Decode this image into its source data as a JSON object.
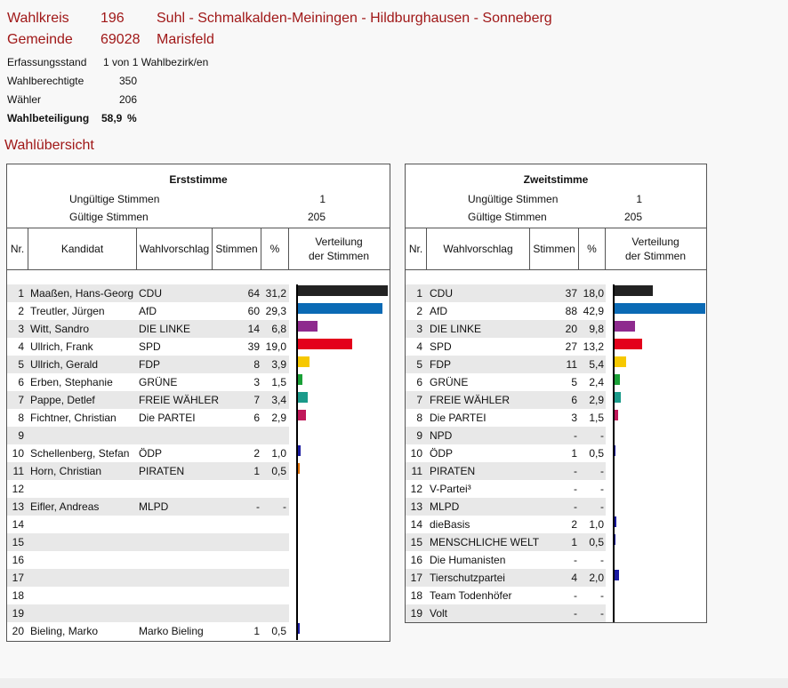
{
  "header": {
    "wahlkreis_label": "Wahlkreis",
    "wahlkreis_nr": "196",
    "wahlkreis_name": "Suhl - Schmalkalden-Meiningen - Hildburghausen - Sonneberg",
    "gemeinde_label": "Gemeinde",
    "gemeinde_nr": "69028",
    "gemeinde_name": "Marisfeld"
  },
  "info": {
    "erfassung_label": "Erfassungsstand",
    "erfassung_value": "1 von 1 Wahlbezirk/en",
    "berechtigte_label": "Wahlberechtigte",
    "berechtigte_value": "350",
    "waehler_label": "Wähler",
    "waehler_value": "206",
    "beteiligung_label": "Wahlbeteiligung",
    "beteiligung_value": "58,9",
    "beteiligung_unit": "%"
  },
  "section_title": "Wahlübersicht",
  "erststimme": {
    "title": "Erststimme",
    "ungueltig_label": "Ungültige Stimmen",
    "ungueltig_value": "1",
    "gueltig_label": "Gültige Stimmen",
    "gueltig_value": "205",
    "col_nr": "Nr.",
    "col_kandidat": "Kandidat",
    "col_wahlvorschlag": "Wahlvorschlag",
    "col_stimmen": "Stimmen",
    "col_pct": "%",
    "col_verteilung_1": "Verteilung",
    "col_verteilung_2": "der Stimmen",
    "rows": [
      {
        "nr": "1",
        "kandidat": "Maaßen, Hans-Georg",
        "partei": "CDU",
        "stimmen": "64",
        "pct": "31,2",
        "share": 31.2,
        "color": "#222222"
      },
      {
        "nr": "2",
        "kandidat": "Treutler, Jürgen",
        "partei": "AfD",
        "stimmen": "60",
        "pct": "29,3",
        "share": 29.3,
        "color": "#0a6ab5"
      },
      {
        "nr": "3",
        "kandidat": "Witt, Sandro",
        "partei": "DIE LINKE",
        "stimmen": "14",
        "pct": "6,8",
        "share": 6.8,
        "color": "#8e2a8e"
      },
      {
        "nr": "4",
        "kandidat": "Ullrich, Frank",
        "partei": "SPD",
        "stimmen": "39",
        "pct": "19,0",
        "share": 19.0,
        "color": "#e3001b"
      },
      {
        "nr": "5",
        "kandidat": "Ullrich, Gerald",
        "partei": "FDP",
        "stimmen": "8",
        "pct": "3,9",
        "share": 3.9,
        "color": "#f6c800"
      },
      {
        "nr": "6",
        "kandidat": "Erben, Stephanie",
        "partei": "GRÜNE",
        "stimmen": "3",
        "pct": "1,5",
        "share": 1.5,
        "color": "#1aa037"
      },
      {
        "nr": "7",
        "kandidat": "Pappe, Detlef",
        "partei": "FREIE WÄHLER",
        "stimmen": "7",
        "pct": "3,4",
        "share": 3.4,
        "color": "#1a9a8a"
      },
      {
        "nr": "8",
        "kandidat": "Fichtner, Christian",
        "partei": "Die PARTEI",
        "stimmen": "6",
        "pct": "2,9",
        "share": 2.9,
        "color": "#c0185a"
      },
      {
        "nr": "9",
        "kandidat": "",
        "partei": "",
        "stimmen": "",
        "pct": "",
        "share": 0,
        "color": ""
      },
      {
        "nr": "10",
        "kandidat": "Schellenberg, Stefan",
        "partei": "ÖDP",
        "stimmen": "2",
        "pct": "1,0",
        "share": 1.0,
        "color": "#1a1aa0"
      },
      {
        "nr": "11",
        "kandidat": "Horn, Christian",
        "partei": "PIRATEN",
        "stimmen": "1",
        "pct": "0,5",
        "share": 0.5,
        "color": "#e07000"
      },
      {
        "nr": "12",
        "kandidat": "",
        "partei": "",
        "stimmen": "",
        "pct": "",
        "share": 0,
        "color": ""
      },
      {
        "nr": "13",
        "kandidat": "Eifler, Andreas",
        "partei": "MLPD",
        "stimmen": "-",
        "pct": "-",
        "share": 0,
        "color": ""
      },
      {
        "nr": "14",
        "kandidat": "",
        "partei": "",
        "stimmen": "",
        "pct": "",
        "share": 0,
        "color": ""
      },
      {
        "nr": "15",
        "kandidat": "",
        "partei": "",
        "stimmen": "",
        "pct": "",
        "share": 0,
        "color": ""
      },
      {
        "nr": "16",
        "kandidat": "",
        "partei": "",
        "stimmen": "",
        "pct": "",
        "share": 0,
        "color": ""
      },
      {
        "nr": "17",
        "kandidat": "",
        "partei": "",
        "stimmen": "",
        "pct": "",
        "share": 0,
        "color": ""
      },
      {
        "nr": "18",
        "kandidat": "",
        "partei": "",
        "stimmen": "",
        "pct": "",
        "share": 0,
        "color": ""
      },
      {
        "nr": "19",
        "kandidat": "",
        "partei": "",
        "stimmen": "",
        "pct": "",
        "share": 0,
        "color": ""
      },
      {
        "nr": "20",
        "kandidat": "Bieling, Marko",
        "partei": "Marko Bieling",
        "stimmen": "1",
        "pct": "0,5",
        "share": 0.5,
        "color": "#1a1aa0"
      }
    ]
  },
  "zweitstimme": {
    "title": "Zweitstimme",
    "ungueltig_label": "Ungültige Stimmen",
    "ungueltig_value": "1",
    "gueltig_label": "Gültige Stimmen",
    "gueltig_value": "205",
    "col_nr": "Nr.",
    "col_wahlvorschlag": "Wahlvorschlag",
    "col_stimmen": "Stimmen",
    "col_pct": "%",
    "col_verteilung_1": "Verteilung",
    "col_verteilung_2": "der Stimmen",
    "rows": [
      {
        "nr": "1",
        "partei": "CDU",
        "stimmen": "37",
        "pct": "18,0",
        "share": 18.0,
        "color": "#222222"
      },
      {
        "nr": "2",
        "partei": "AfD",
        "stimmen": "88",
        "pct": "42,9",
        "share": 42.9,
        "color": "#0a6ab5"
      },
      {
        "nr": "3",
        "partei": "DIE LINKE",
        "stimmen": "20",
        "pct": "9,8",
        "share": 9.8,
        "color": "#8e2a8e"
      },
      {
        "nr": "4",
        "partei": "SPD",
        "stimmen": "27",
        "pct": "13,2",
        "share": 13.2,
        "color": "#e3001b"
      },
      {
        "nr": "5",
        "partei": "FDP",
        "stimmen": "11",
        "pct": "5,4",
        "share": 5.4,
        "color": "#f6c800"
      },
      {
        "nr": "6",
        "partei": "GRÜNE",
        "stimmen": "5",
        "pct": "2,4",
        "share": 2.4,
        "color": "#1aa037"
      },
      {
        "nr": "7",
        "partei": "FREIE WÄHLER",
        "stimmen": "6",
        "pct": "2,9",
        "share": 2.9,
        "color": "#1a9a8a"
      },
      {
        "nr": "8",
        "partei": "Die PARTEI",
        "stimmen": "3",
        "pct": "1,5",
        "share": 1.5,
        "color": "#c0185a"
      },
      {
        "nr": "9",
        "partei": "NPD",
        "stimmen": "-",
        "pct": "-",
        "share": 0,
        "color": ""
      },
      {
        "nr": "10",
        "partei": "ÖDP",
        "stimmen": "1",
        "pct": "0,5",
        "share": 0.5,
        "color": "#1a1aa0"
      },
      {
        "nr": "11",
        "partei": "PIRATEN",
        "stimmen": "-",
        "pct": "-",
        "share": 0,
        "color": ""
      },
      {
        "nr": "12",
        "partei": "V-Partei³",
        "stimmen": "-",
        "pct": "-",
        "share": 0,
        "color": ""
      },
      {
        "nr": "13",
        "partei": "MLPD",
        "stimmen": "-",
        "pct": "-",
        "share": 0,
        "color": ""
      },
      {
        "nr": "14",
        "partei": "dieBasis",
        "stimmen": "2",
        "pct": "1,0",
        "share": 1.0,
        "color": "#1a1aa0"
      },
      {
        "nr": "15",
        "partei": "MENSCHLICHE WELT",
        "stimmen": "1",
        "pct": "0,5",
        "share": 0.5,
        "color": "#1a1aa0"
      },
      {
        "nr": "16",
        "partei": "Die Humanisten",
        "stimmen": "-",
        "pct": "-",
        "share": 0,
        "color": ""
      },
      {
        "nr": "17",
        "partei": "Tierschutzpartei",
        "stimmen": "4",
        "pct": "2,0",
        "share": 2.0,
        "color": "#1a1aa0"
      },
      {
        "nr": "18",
        "partei": "Team Todenhöfer",
        "stimmen": "-",
        "pct": "-",
        "share": 0,
        "color": ""
      },
      {
        "nr": "19",
        "partei": "Volt",
        "stimmen": "-",
        "pct": "-",
        "share": 0,
        "color": ""
      }
    ]
  }
}
